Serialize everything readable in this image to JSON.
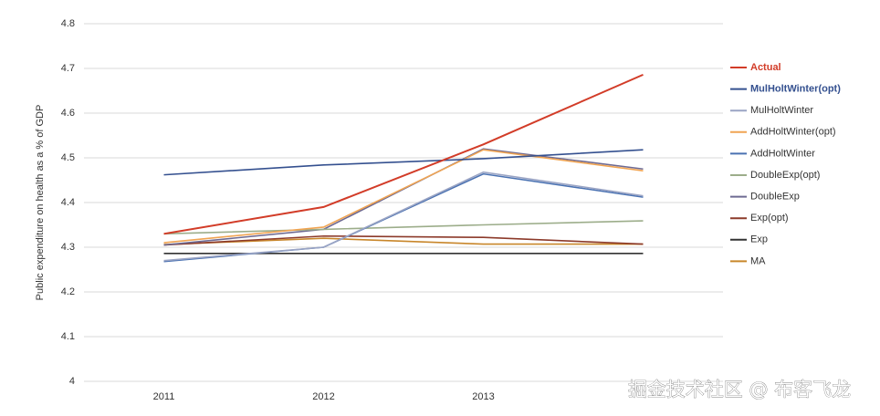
{
  "chart_data": {
    "type": "line",
    "y_label": "Public expenditure on health as a % of GDP",
    "categories": [
      "2011",
      "2012",
      "2013",
      null
    ],
    "ylim": [
      4,
      4.8
    ],
    "yticks": [
      4,
      4.1,
      4.2,
      4.3,
      4.4,
      4.5,
      4.6,
      4.7,
      4.8
    ],
    "grid": true,
    "legend_position": "right",
    "series": [
      {
        "name": "Actual",
        "color": "#d23c28",
        "values": [
          4.33,
          4.39,
          4.53,
          4.686
        ]
      },
      {
        "name": "MulHoltWinter(opt)",
        "color": "#34508f",
        "values": [
          4.462,
          4.484,
          4.498,
          4.518
        ]
      },
      {
        "name": "MulHoltWinter",
        "color": "#9aa4c4",
        "values": [
          4.27,
          4.3,
          4.468,
          4.415
        ]
      },
      {
        "name": "AddHoltWinter(opt)",
        "color": "#f0a452",
        "values": [
          4.31,
          4.345,
          4.518,
          4.471
        ]
      },
      {
        "name": "AddHoltWinter",
        "color": "#4a72b2",
        "values": [
          4.268,
          4.3,
          4.464,
          4.412
        ]
      },
      {
        "name": "DoubleExp(opt)",
        "color": "#9cad8a",
        "values": [
          4.33,
          4.34,
          4.35,
          4.359
        ]
      },
      {
        "name": "DoubleExp",
        "color": "#6e6a92",
        "values": [
          4.305,
          4.34,
          4.52,
          4.475
        ]
      },
      {
        "name": "Exp(opt)",
        "color": "#8c3a2a",
        "values": [
          4.305,
          4.325,
          4.322,
          4.307
        ]
      },
      {
        "name": "Exp",
        "color": "#333333",
        "values": [
          4.286,
          4.286,
          4.286,
          4.286
        ]
      },
      {
        "name": "MA",
        "color": "#c8862a",
        "values": [
          4.306,
          4.32,
          4.307,
          4.307
        ]
      }
    ]
  },
  "watermark": "掘金技术社区 @ 布客飞龙"
}
